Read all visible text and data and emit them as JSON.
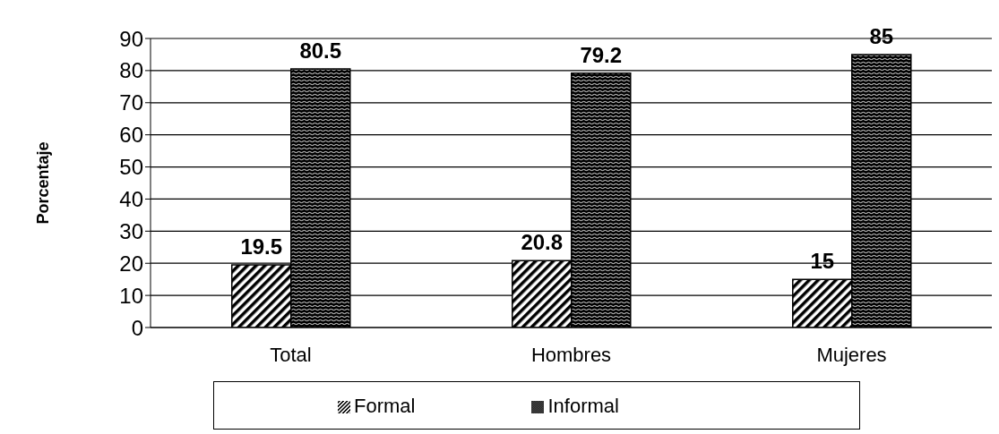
{
  "chart_data": {
    "type": "bar",
    "ylabel": "Porcentaje",
    "categories": [
      "Total",
      "Hombres",
      "Mujeres"
    ],
    "series": [
      {
        "name": "Formal",
        "color": "#000000",
        "values": [
          19.5,
          20.8,
          15
        ]
      },
      {
        "name": "Informal",
        "color": "#000000",
        "values": [
          80.5,
          79.2,
          85
        ]
      }
    ],
    "ylim": [
      0,
      90
    ],
    "yticks": [
      0,
      10,
      20,
      30,
      40,
      50,
      60,
      70,
      80,
      90
    ],
    "grid": "y",
    "legend": "bottom",
    "data_labels": true
  }
}
